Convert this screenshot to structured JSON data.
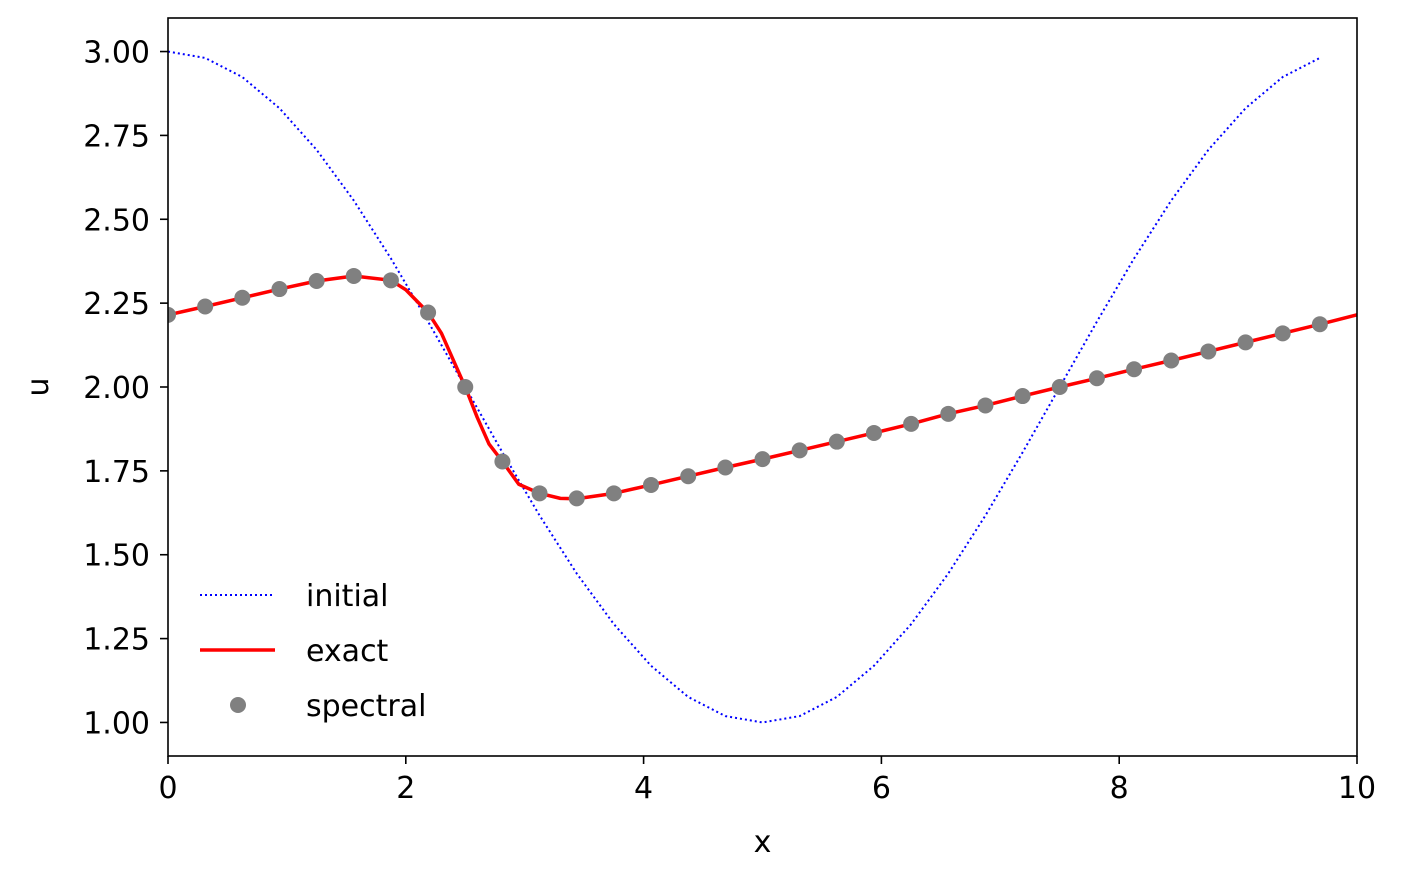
{
  "chart_data": {
    "type": "line",
    "title": "",
    "xlabel": "x",
    "ylabel": "u",
    "xlim": [
      0,
      10
    ],
    "ylim": [
      0.9,
      3.1
    ],
    "xticks": [
      0,
      2,
      4,
      6,
      8,
      10
    ],
    "yticks": [
      1.0,
      1.25,
      1.5,
      1.75,
      2.0,
      2.25,
      2.5,
      2.75,
      3.0
    ],
    "xtick_labels": [
      "0",
      "2",
      "4",
      "6",
      "8",
      "10"
    ],
    "ytick_labels": [
      "1.00",
      "1.25",
      "1.50",
      "1.75",
      "2.00",
      "2.25",
      "2.50",
      "2.75",
      "3.00"
    ],
    "grid": false,
    "legend_position": "lower-left",
    "series": [
      {
        "name": "initial",
        "style": "dotted",
        "color": "#0000ff",
        "x": [
          0,
          0.3125,
          0.625,
          0.9375,
          1.25,
          1.5625,
          1.875,
          2.1875,
          2.5,
          2.8125,
          3.125,
          3.4375,
          3.75,
          4.0625,
          4.375,
          4.6875,
          5.0,
          5.3125,
          5.625,
          5.9375,
          6.25,
          6.5625,
          6.875,
          7.1875,
          7.5,
          7.8125,
          8.125,
          8.4375,
          8.75,
          9.0625,
          9.375,
          9.6875
        ],
        "y": [
          3.0,
          2.981,
          2.924,
          2.831,
          2.707,
          2.556,
          2.383,
          2.195,
          2.0,
          1.805,
          1.617,
          1.444,
          1.293,
          1.169,
          1.076,
          1.019,
          1.0,
          1.019,
          1.076,
          1.169,
          1.293,
          1.444,
          1.617,
          1.805,
          2.0,
          2.195,
          2.383,
          2.556,
          2.707,
          2.831,
          2.924,
          2.981
        ]
      },
      {
        "name": "exact",
        "style": "solid",
        "color": "#ff0000",
        "x": [
          0,
          0.3125,
          0.625,
          0.9375,
          1.25,
          1.5625,
          1.875,
          2.0,
          2.1875,
          2.3,
          2.4,
          2.5,
          2.6,
          2.7,
          2.8125,
          2.95,
          3.125,
          3.3,
          3.4375,
          3.75,
          4.0625,
          4.375,
          4.6875,
          5.0,
          5.3125,
          5.625,
          5.9375,
          6.25,
          6.5625,
          6.875,
          7.1875,
          7.5,
          7.8125,
          8.125,
          8.4375,
          8.75,
          9.0625,
          9.375,
          9.6875,
          10.0
        ],
        "y": [
          2.215,
          2.24,
          2.266,
          2.292,
          2.316,
          2.331,
          2.318,
          2.29,
          2.222,
          2.16,
          2.08,
          2.0,
          1.91,
          1.83,
          1.778,
          1.71,
          1.683,
          1.668,
          1.667,
          1.683,
          1.708,
          1.734,
          1.76,
          1.785,
          1.811,
          1.837,
          1.863,
          1.89,
          1.92,
          1.945,
          1.973,
          2.0,
          2.026,
          2.053,
          2.079,
          2.106,
          2.133,
          2.16,
          2.187,
          2.215
        ]
      },
      {
        "name": "spectral",
        "style": "markers",
        "color": "#808080",
        "x": [
          0,
          0.3125,
          0.625,
          0.9375,
          1.25,
          1.5625,
          1.875,
          2.1875,
          2.5,
          2.8125,
          3.125,
          3.4375,
          3.75,
          4.0625,
          4.375,
          4.6875,
          5.0,
          5.3125,
          5.625,
          5.9375,
          6.25,
          6.5625,
          6.875,
          7.1875,
          7.5,
          7.8125,
          8.125,
          8.4375,
          8.75,
          9.0625,
          9.375,
          9.6875
        ],
        "y": [
          2.215,
          2.24,
          2.266,
          2.292,
          2.316,
          2.331,
          2.318,
          2.222,
          2.0,
          1.778,
          1.683,
          1.668,
          1.683,
          1.708,
          1.734,
          1.76,
          1.785,
          1.811,
          1.837,
          1.863,
          1.89,
          1.92,
          1.945,
          1.973,
          2.0,
          2.026,
          2.053,
          2.079,
          2.106,
          2.133,
          2.16,
          2.187
        ]
      }
    ]
  }
}
